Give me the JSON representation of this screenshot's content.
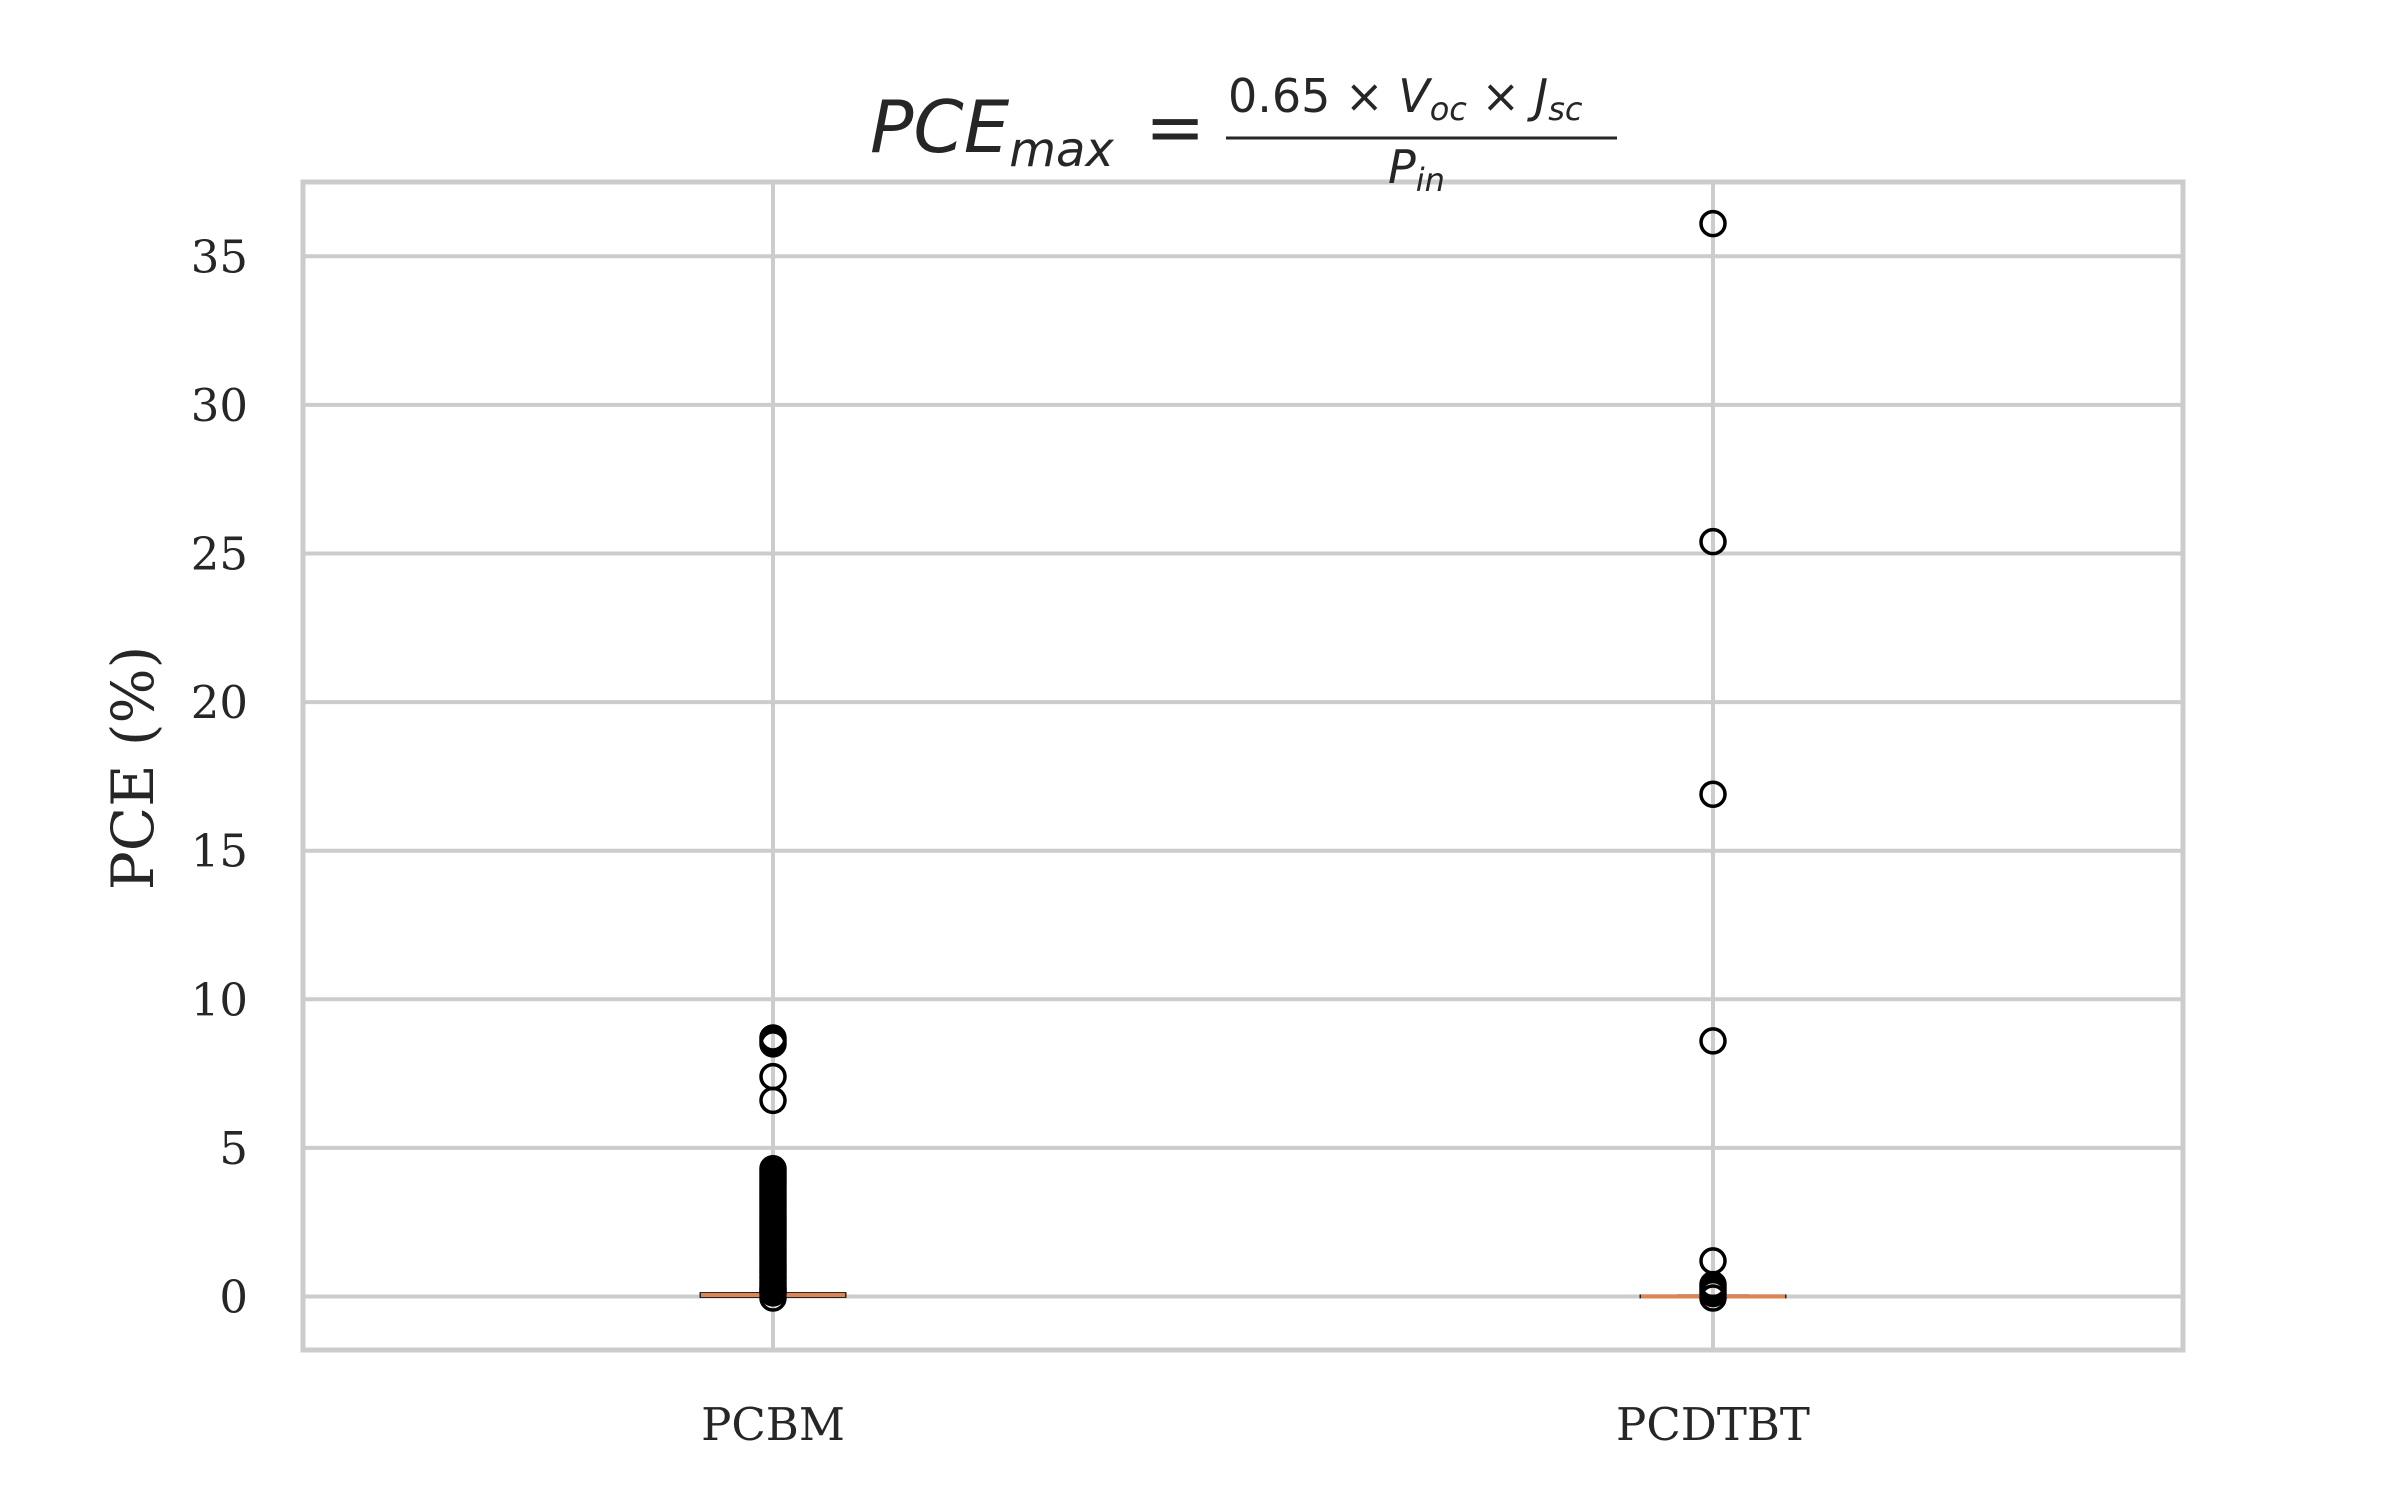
{
  "chart_data": {
    "type": "box",
    "title": {
      "main": "PCE",
      "main_sub": "max",
      "equals": "=",
      "numerator_coef": "0.65 × ",
      "numerator_v": "V",
      "numerator_v_sub": "oc",
      "numerator_times": " × ",
      "numerator_j": "J",
      "numerator_j_sub": "sc",
      "denominator": "P",
      "denominator_sub": "in"
    },
    "xlabel": "",
    "ylabel": "PCE (%)",
    "ylim": [
      -1.8,
      37.5
    ],
    "yticks": [
      0,
      5,
      10,
      15,
      20,
      25,
      30,
      35
    ],
    "categories": [
      "PCBM",
      "PCDTBT"
    ],
    "grid": true,
    "colors": {
      "median": "#dd8452",
      "grid": "#cccccc",
      "spine": "#cccccc",
      "outlier": "#000000"
    },
    "boxes": [
      {
        "category": "PCBM",
        "median": 0.05,
        "q1": 0.0,
        "q3": 0.1,
        "whisker_low": 0.0,
        "whisker_high": 0.1,
        "outliers": [
          8.7,
          8.6,
          8.5,
          7.4,
          6.6,
          4.3,
          4.2,
          4.1,
          4.0,
          3.9,
          3.8,
          3.7,
          3.6,
          3.5,
          3.4,
          3.3,
          3.2,
          3.1,
          3.0,
          2.9,
          2.8,
          2.7,
          2.6,
          2.5,
          2.4,
          2.3,
          2.2,
          2.1,
          2.0,
          1.9,
          1.8,
          1.7,
          1.6,
          1.5,
          1.4,
          1.3,
          1.2,
          1.1,
          1.0,
          0.9,
          0.8,
          0.7,
          0.6,
          0.5,
          0.4,
          0.3,
          0.25,
          0.2,
          0.15,
          0.12,
          -0.05
        ]
      },
      {
        "category": "PCDTBT",
        "median": 0.0,
        "q1": 0.0,
        "q3": 0.02,
        "whisker_low": 0.0,
        "whisker_high": 0.02,
        "outliers": [
          36.1,
          25.4,
          16.9,
          8.6,
          1.2,
          0.4,
          0.3,
          0.2,
          0.1,
          -0.05
        ]
      }
    ]
  }
}
